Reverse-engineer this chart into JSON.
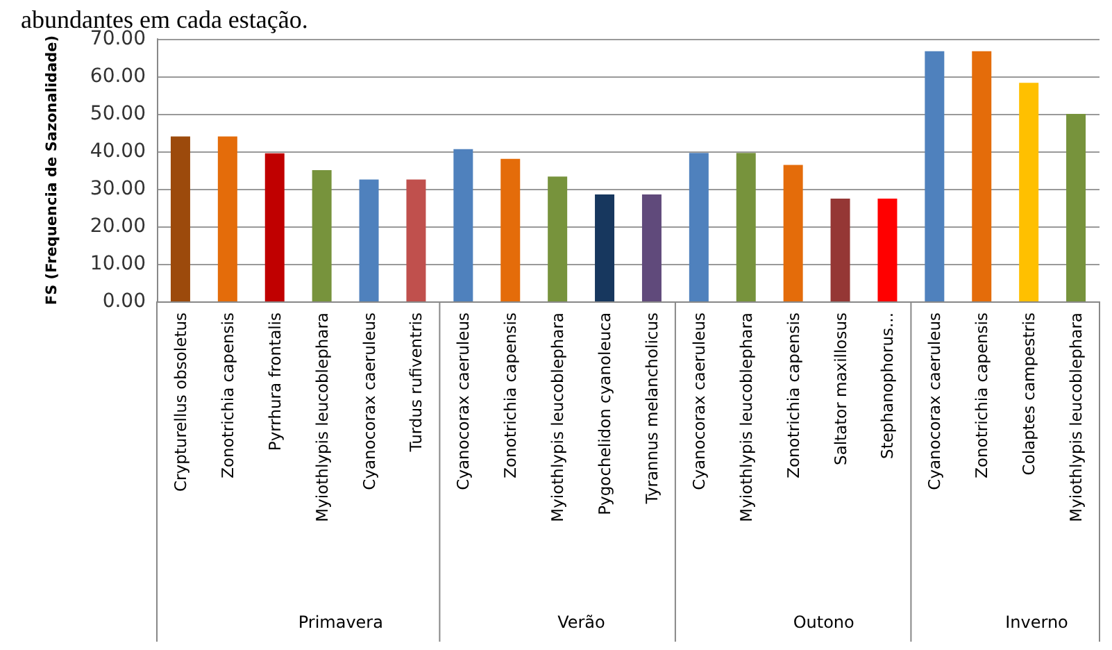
{
  "chart_data": {
    "type": "bar",
    "title": "abundantes em cada estação.",
    "ylabel": "FS (Frequencia de Sazonalidade)",
    "categories": [
      "Crypturellus obsoletus",
      "Zonotrichia capensis",
      "Pyrrhura frontalis",
      "Myiothlypis leucoblephara",
      "Cyanocorax caeruleus",
      "Turdus rufiventris",
      "Cyanocorax caeruleus",
      "Zonotrichia capensis",
      "Myiothlypis leucoblephara",
      "Pygochelidon cyanoleuca",
      "Tyrannus melancholicus",
      "Cyanocorax caeruleus",
      "Myiothlypis leucoblephara",
      "Zonotrichia capensis",
      "Saltator maxillosus",
      "Stephanophorus...",
      "Cyanocorax caeruleus",
      "Zonotrichia capensis",
      "Colaptes campestris",
      "Myiothlypis leucoblephara"
    ],
    "series": [
      {
        "values": [
          44,
          44,
          39.5,
          35,
          32.5,
          32.5,
          null,
          null,
          null,
          null,
          null,
          null,
          null,
          null,
          null,
          null,
          null,
          null,
          null,
          null
        ],
        "colors": [
          "#9c4a0c",
          "#e46c0a",
          "#c00000",
          "#77933c",
          "#4f81bd",
          "#c0504d",
          null,
          null,
          null,
          null,
          null,
          null,
          null,
          null,
          null,
          null,
          null,
          null,
          null,
          null
        ]
      },
      {
        "values": [
          null,
          null,
          null,
          null,
          null,
          null,
          40.6,
          38,
          33.3,
          28.5,
          28.5,
          null,
          null,
          null,
          null,
          null,
          null,
          null,
          null,
          null
        ],
        "colors": [
          null,
          null,
          null,
          null,
          null,
          null,
          "#4f81bd",
          "#e46c0a",
          "#77933c",
          "#17375e",
          "#604a7b",
          null,
          null,
          null,
          null,
          null,
          null,
          null,
          null,
          null
        ]
      },
      {
        "values": [
          null,
          null,
          null,
          null,
          null,
          null,
          null,
          null,
          null,
          null,
          null,
          39.6,
          39.6,
          36.4,
          27.4,
          27.4,
          null,
          null,
          null,
          null
        ],
        "colors": [
          null,
          null,
          null,
          null,
          null,
          null,
          null,
          null,
          null,
          null,
          null,
          "#4f81bd",
          "#77933c",
          "#e46c0a",
          "#953735",
          "#ff0000",
          null,
          null,
          null,
          null
        ]
      },
      {
        "values": [
          null,
          null,
          null,
          null,
          null,
          null,
          null,
          null,
          null,
          null,
          null,
          null,
          null,
          null,
          null,
          null,
          66.7,
          66.7,
          58.3,
          50
        ],
        "colors": [
          null,
          null,
          null,
          null,
          null,
          null,
          null,
          null,
          null,
          null,
          null,
          null,
          null,
          null,
          null,
          null,
          "#4f81bd",
          "#e46c0a",
          "#ffc000",
          "#77933c"
        ]
      }
    ],
    "ylim": [
      0,
      70
    ],
    "yticks": [
      {
        "value": 0,
        "label": "0.00"
      },
      {
        "value": 10,
        "label": "10.00"
      },
      {
        "value": 20,
        "label": "20.00"
      },
      {
        "value": 30,
        "label": "30.00"
      },
      {
        "value": 40,
        "label": "40.00"
      },
      {
        "value": 50,
        "label": "50.00"
      },
      {
        "value": 60,
        "label": "60.00"
      },
      {
        "value": 70,
        "label": "70.00"
      }
    ],
    "annotations": [
      "Primavera",
      "Verão",
      "Outono",
      "Inverno"
    ],
    "grid": "y",
    "legend": false
  }
}
